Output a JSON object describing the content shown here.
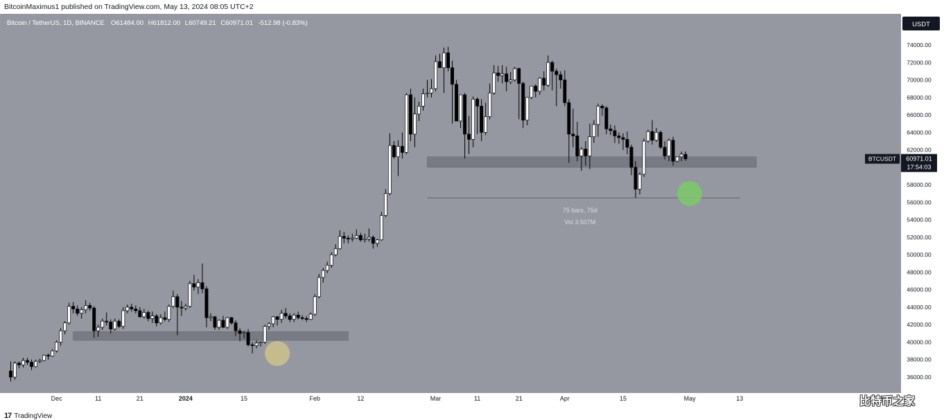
{
  "header": {
    "published": "BitcoinMaximus1 published on TradingView.com, May 13, 2024 08:05 UTC+2"
  },
  "chart_data": {
    "type": "candlestick",
    "legend": {
      "symbol": "Bitcoin / TetherUS, 1D, BINANCE",
      "o_label": "O",
      "o": "61484.00",
      "h_label": "H",
      "h": "61812.00",
      "l_label": "L",
      "l": "60749.21",
      "c_label": "C",
      "c": "60971.01",
      "change": "-512.98 (-0.83%)"
    },
    "currency_button": "USDT",
    "ylim": [
      35000,
      76000
    ],
    "y_ticks": [
      "36000.00",
      "38000.00",
      "40000.00",
      "42000.00",
      "44000.00",
      "46000.00",
      "48000.00",
      "50000.00",
      "52000.00",
      "54000.00",
      "56000.00",
      "58000.00",
      "60000.00",
      "62000.00",
      "64000.00",
      "66000.00",
      "68000.00",
      "70000.00",
      "72000.00",
      "74000.00"
    ],
    "x_ticks": [
      {
        "label": "Dec",
        "date": "2023-12-01"
      },
      {
        "label": "11",
        "date": "2023-12-11"
      },
      {
        "label": "21",
        "date": "2023-12-21"
      },
      {
        "label": "2024",
        "date": "2024-01-01"
      },
      {
        "label": "15",
        "date": "2024-01-15"
      },
      {
        "label": "Feb",
        "date": "2024-02-01"
      },
      {
        "label": "12",
        "date": "2024-02-12"
      },
      {
        "label": "Mar",
        "date": "2024-03-01"
      },
      {
        "label": "11",
        "date": "2024-03-11"
      },
      {
        "label": "21",
        "date": "2024-03-21"
      },
      {
        "label": "Apr",
        "date": "2024-04-01"
      },
      {
        "label": "15",
        "date": "2024-04-15"
      },
      {
        "label": "May",
        "date": "2024-05-01"
      },
      {
        "label": "13",
        "date": "2024-05-13"
      }
    ],
    "price_label": {
      "symbol": "BTCUSDT",
      "price": "60971.01",
      "countdown": "17:54:03"
    },
    "measure_label": {
      "bars": "75 bars, 75d",
      "vol": "Vol 3.507M"
    },
    "zones": [
      {
        "name": "zone-dec-jan",
        "from": "2023-12-05",
        "to": "2024-02-09",
        "low": 40200,
        "high": 41200
      },
      {
        "name": "zone-mar-may",
        "from": "2024-02-28",
        "to": "2024-05-17",
        "low": 60000,
        "high": 61200
      }
    ],
    "measure_line": {
      "from": "2024-02-28",
      "to": "2024-05-13",
      "price": 56500
    },
    "highlights": [
      {
        "name": "highlight-jan-low",
        "date": "2024-01-23",
        "price": 38700,
        "color": "#c9c08a"
      },
      {
        "name": "highlight-may-low",
        "date": "2024-05-01",
        "price": 57000,
        "color": "#7cc66a"
      }
    ],
    "colors": {
      "background": "#9598a1",
      "bull": "#ffffff",
      "bear": "#000000",
      "zone": "#6f7279"
    },
    "start_date": "2023-11-20",
    "candles": [
      [
        36700,
        37800,
        35500,
        36000
      ],
      [
        36000,
        37800,
        35700,
        37600
      ],
      [
        37600,
        37800,
        37000,
        37400
      ],
      [
        37400,
        38200,
        37100,
        37900
      ],
      [
        37900,
        38200,
        37400,
        37700
      ],
      [
        37700,
        38000,
        36800,
        37200
      ],
      [
        37200,
        38000,
        37100,
        37800
      ],
      [
        37800,
        38100,
        37600,
        37900
      ],
      [
        37900,
        38600,
        37800,
        38500
      ],
      [
        38500,
        38700,
        38000,
        38400
      ],
      [
        38400,
        39200,
        38300,
        39000
      ],
      [
        39000,
        40200,
        38800,
        40000
      ],
      [
        40000,
        41600,
        39600,
        41300
      ],
      [
        41300,
        42400,
        40900,
        42200
      ],
      [
        42200,
        44500,
        42000,
        44100
      ],
      [
        44100,
        44600,
        43300,
        43800
      ],
      [
        43800,
        44200,
        43000,
        43300
      ],
      [
        43300,
        44000,
        42700,
        43700
      ],
      [
        43700,
        44800,
        43300,
        44200
      ],
      [
        44200,
        44500,
        43600,
        43900
      ],
      [
        43900,
        44100,
        40500,
        41300
      ],
      [
        41300,
        42000,
        40600,
        41700
      ],
      [
        41700,
        42700,
        41400,
        42400
      ],
      [
        42400,
        43400,
        41900,
        42300
      ],
      [
        42300,
        42600,
        41000,
        41500
      ],
      [
        41500,
        42700,
        41300,
        42400
      ],
      [
        42400,
        42600,
        41600,
        41800
      ],
      [
        41800,
        44000,
        41500,
        43600
      ],
      [
        43600,
        44300,
        43300,
        44000
      ],
      [
        44000,
        44400,
        43500,
        43800
      ],
      [
        43800,
        44200,
        43300,
        43600
      ],
      [
        43600,
        44000,
        42800,
        42900
      ],
      [
        42900,
        43800,
        42700,
        43400
      ],
      [
        43400,
        43600,
        42400,
        42700
      ],
      [
        42700,
        43500,
        42200,
        43000
      ],
      [
        43000,
        43200,
        41800,
        42200
      ],
      [
        42200,
        43200,
        42000,
        42800
      ],
      [
        42800,
        43500,
        42400,
        42600
      ],
      [
        42600,
        44300,
        42300,
        44100
      ],
      [
        44100,
        45900,
        43900,
        45200
      ],
      [
        45200,
        45500,
        40800,
        44000
      ],
      [
        44000,
        44700,
        43000,
        43900
      ],
      [
        43900,
        44400,
        43600,
        44100
      ],
      [
        44100,
        47000,
        43900,
        46700
      ],
      [
        46700,
        47700,
        45900,
        46300
      ],
      [
        46300,
        47200,
        45500,
        46800
      ],
      [
        46800,
        49000,
        45600,
        46100
      ],
      [
        46100,
        46400,
        41700,
        42800
      ],
      [
        42800,
        43300,
        42400,
        42900
      ],
      [
        42900,
        43000,
        41400,
        41700
      ],
      [
        41700,
        42600,
        41400,
        42500
      ],
      [
        42500,
        43000,
        41600,
        41700
      ],
      [
        41700,
        42900,
        41500,
        42800
      ],
      [
        42800,
        42900,
        42000,
        42200
      ],
      [
        42200,
        42500,
        40700,
        41300
      ],
      [
        41300,
        41600,
        40100,
        41000
      ],
      [
        41000,
        41300,
        40400,
        41100
      ],
      [
        41100,
        41500,
        39500,
        39700
      ],
      [
        39700,
        40000,
        38700,
        39600
      ],
      [
        39600,
        40200,
        39300,
        39900
      ],
      [
        39900,
        40100,
        39500,
        40000
      ],
      [
        40000,
        42000,
        39800,
        41800
      ],
      [
        41800,
        42300,
        41400,
        42100
      ],
      [
        42100,
        43000,
        41700,
        42900
      ],
      [
        42900,
        43000,
        41900,
        42600
      ],
      [
        42600,
        43700,
        42200,
        43300
      ],
      [
        43300,
        43900,
        42700,
        43000
      ],
      [
        43000,
        43300,
        42300,
        42600
      ],
      [
        42600,
        43300,
        42300,
        43100
      ],
      [
        43100,
        43500,
        42600,
        42800
      ],
      [
        42800,
        43100,
        42500,
        42700
      ],
      [
        42700,
        43000,
        42300,
        42600
      ],
      [
        42600,
        43400,
        42500,
        43200
      ],
      [
        43200,
        45500,
        43000,
        45200
      ],
      [
        45200,
        47800,
        45000,
        47400
      ],
      [
        47400,
        48500,
        46800,
        48200
      ],
      [
        48200,
        49200,
        47900,
        48800
      ],
      [
        48800,
        50300,
        48500,
        50000
      ],
      [
        50000,
        51200,
        49800,
        50700
      ],
      [
        50700,
        52800,
        50600,
        52100
      ],
      [
        52100,
        52600,
        51300,
        51900
      ],
      [
        51900,
        52200,
        51300,
        51800
      ],
      [
        51800,
        52400,
        51500,
        51900
      ],
      [
        51900,
        52900,
        51800,
        52200
      ],
      [
        52200,
        52500,
        51500,
        51700
      ],
      [
        51700,
        52400,
        51400,
        51800
      ],
      [
        51800,
        53000,
        51500,
        52000
      ],
      [
        52000,
        52200,
        50700,
        51300
      ],
      [
        51300,
        51800,
        50900,
        51700
      ],
      [
        51700,
        54900,
        51600,
        54500
      ],
      [
        54500,
        57500,
        54300,
        57000
      ],
      [
        57000,
        63900,
        56800,
        62500
      ],
      [
        62500,
        63000,
        61000,
        61200
      ],
      [
        61200,
        63100,
        59000,
        62400
      ],
      [
        62400,
        64000,
        61000,
        61700
      ],
      [
        61700,
        68500,
        61500,
        68300
      ],
      [
        68300,
        69000,
        63000,
        63800
      ],
      [
        63800,
        68000,
        62300,
        66100
      ],
      [
        66100,
        67500,
        65300,
        67000
      ],
      [
        67000,
        69000,
        66500,
        68400
      ],
      [
        68400,
        70000,
        68000,
        68500
      ],
      [
        68500,
        70100,
        68000,
        69000
      ],
      [
        69000,
        72800,
        68700,
        72100
      ],
      [
        72100,
        73000,
        71500,
        71400
      ],
      [
        71400,
        73700,
        68500,
        73100
      ],
      [
        73100,
        73800,
        71000,
        71400
      ],
      [
        71400,
        72200,
        65000,
        69500
      ],
      [
        69500,
        70000,
        65500,
        65300
      ],
      [
        65300,
        68200,
        64500,
        68300
      ],
      [
        68300,
        68500,
        61000,
        63800
      ],
      [
        63800,
        65900,
        61500,
        63200
      ],
      [
        63200,
        68100,
        62300,
        67800
      ],
      [
        67800,
        68000,
        63800,
        67000
      ],
      [
        67000,
        67800,
        63000,
        64000
      ],
      [
        64000,
        67400,
        63700,
        65800
      ],
      [
        65800,
        69600,
        65500,
        68500
      ],
      [
        68500,
        71700,
        68300,
        70800
      ],
      [
        70800,
        71600,
        69800,
        70500
      ],
      [
        70500,
        71700,
        69600,
        70700
      ],
      [
        70700,
        71500,
        68700,
        69800
      ],
      [
        69800,
        70900,
        69500,
        70000
      ],
      [
        70000,
        71500,
        69800,
        71300
      ],
      [
        71300,
        71400,
        65500,
        69600
      ],
      [
        69600,
        69800,
        64500,
        65400
      ],
      [
        65400,
        68000,
        64800,
        68000
      ],
      [
        68000,
        69300,
        67800,
        69300
      ],
      [
        69300,
        69500,
        68000,
        68700
      ],
      [
        68700,
        70300,
        68300,
        70200
      ],
      [
        70200,
        71000,
        68800,
        69400
      ],
      [
        69400,
        72800,
        69200,
        72000
      ],
      [
        72000,
        72200,
        68800,
        71000
      ],
      [
        71000,
        71300,
        67000,
        70600
      ],
      [
        70600,
        71000,
        69000,
        70000
      ],
      [
        70000,
        71100,
        67000,
        67400
      ],
      [
        67400,
        67800,
        60500,
        63800
      ],
      [
        63800,
        66700,
        62300,
        63600
      ],
      [
        63600,
        65200,
        60700,
        61300
      ],
      [
        61300,
        62300,
        59600,
        62100
      ],
      [
        62100,
        63000,
        60200,
        61300
      ],
      [
        61300,
        65000,
        59800,
        63500
      ],
      [
        63500,
        65400,
        62800,
        64900
      ],
      [
        64900,
        67300,
        63500,
        67000
      ],
      [
        67000,
        67200,
        65900,
        66800
      ],
      [
        66800,
        67000,
        63800,
        64400
      ],
      [
        64400,
        64900,
        63700,
        64200
      ],
      [
        64200,
        64800,
        62800,
        63600
      ],
      [
        63600,
        64000,
        62700,
        63400
      ],
      [
        63400,
        63900,
        62000,
        63200
      ],
      [
        63200,
        64100,
        61500,
        62300
      ],
      [
        62300,
        62600,
        59100,
        60000
      ],
      [
        60000,
        60700,
        56500,
        57500
      ],
      [
        57500,
        59400,
        56900,
        59200
      ],
      [
        59200,
        63300,
        58900,
        63000
      ],
      [
        63000,
        64300,
        62800,
        64100
      ],
      [
        64100,
        65400,
        62600,
        63100
      ],
      [
        63100,
        64500,
        62900,
        64000
      ],
      [
        64000,
        64200,
        62100,
        62300
      ],
      [
        62300,
        63000,
        60900,
        61300
      ],
      [
        61300,
        63300,
        60700,
        63100
      ],
      [
        63100,
        63500,
        60200,
        60700
      ],
      [
        60700,
        61200,
        60600,
        61200
      ],
      [
        61200,
        61800,
        60700,
        61500
      ],
      [
        61484,
        61812,
        60749,
        60971
      ]
    ]
  },
  "watermark": "比特币之家",
  "footer": {
    "brand": "TradingView",
    "logo_mark": "17"
  }
}
